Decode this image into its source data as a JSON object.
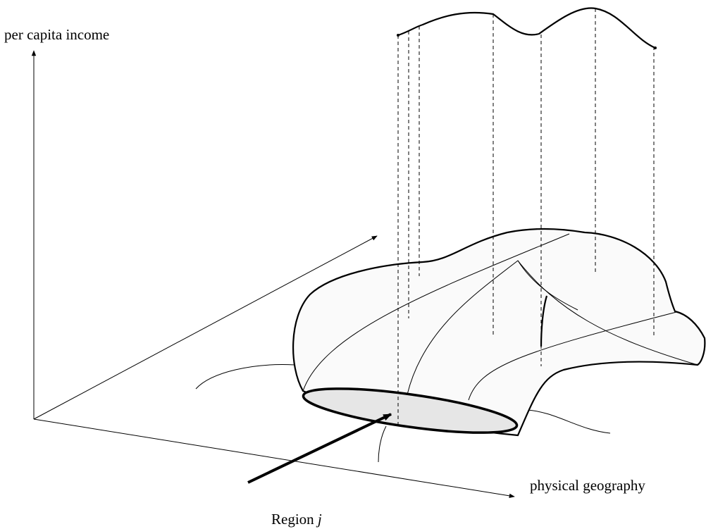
{
  "labels": {
    "vertical_axis": "per capita income",
    "horizontal_axis": "physical geography",
    "region_word": "Region",
    "region_index": "j"
  }
}
